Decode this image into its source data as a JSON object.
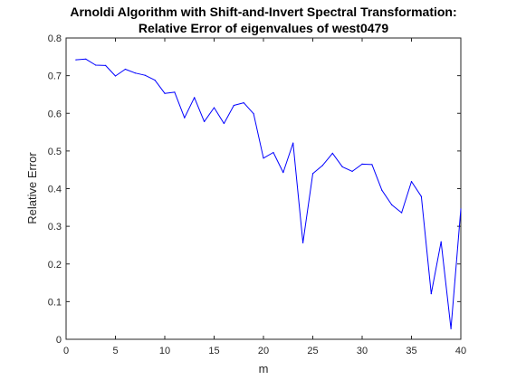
{
  "chart_data": {
    "type": "line",
    "title": "Arnoldi Algorithm with Shift-and-Invert Spectral Transformation:",
    "subtitle": "Relative Error of eigenvalues of west0479",
    "xlabel": "m",
    "ylabel": "Relative Error",
    "xlim": [
      0,
      40
    ],
    "ylim": [
      0,
      0.8
    ],
    "x_ticks": [
      "0",
      "5",
      "10",
      "15",
      "20",
      "25",
      "30",
      "35",
      "40"
    ],
    "y_ticks": [
      "0",
      "0.1",
      "0.2",
      "0.3",
      "0.4",
      "0.5",
      "0.6",
      "0.7",
      "0.8"
    ],
    "grid": false,
    "legend": "none",
    "series": [
      {
        "color": "#0000ff",
        "x": [
          1,
          2,
          3,
          4,
          5,
          6,
          7,
          8,
          9,
          10,
          11,
          12,
          13,
          14,
          15,
          16,
          17,
          18,
          19,
          20,
          21,
          22,
          23,
          24,
          25,
          26,
          27,
          28,
          29,
          30,
          31,
          32,
          33,
          34,
          35,
          36,
          37,
          38,
          39,
          40
        ],
        "values": [
          0.742,
          0.744,
          0.728,
          0.727,
          0.699,
          0.717,
          0.707,
          0.701,
          0.688,
          0.653,
          0.656,
          0.588,
          0.642,
          0.578,
          0.615,
          0.573,
          0.621,
          0.628,
          0.599,
          0.481,
          0.496,
          0.443,
          0.521,
          0.256,
          0.44,
          0.462,
          0.494,
          0.458,
          0.446,
          0.465,
          0.464,
          0.396,
          0.357,
          0.336,
          0.419,
          0.379,
          0.121,
          0.259,
          0.028,
          0.346
        ]
      }
    ]
  }
}
